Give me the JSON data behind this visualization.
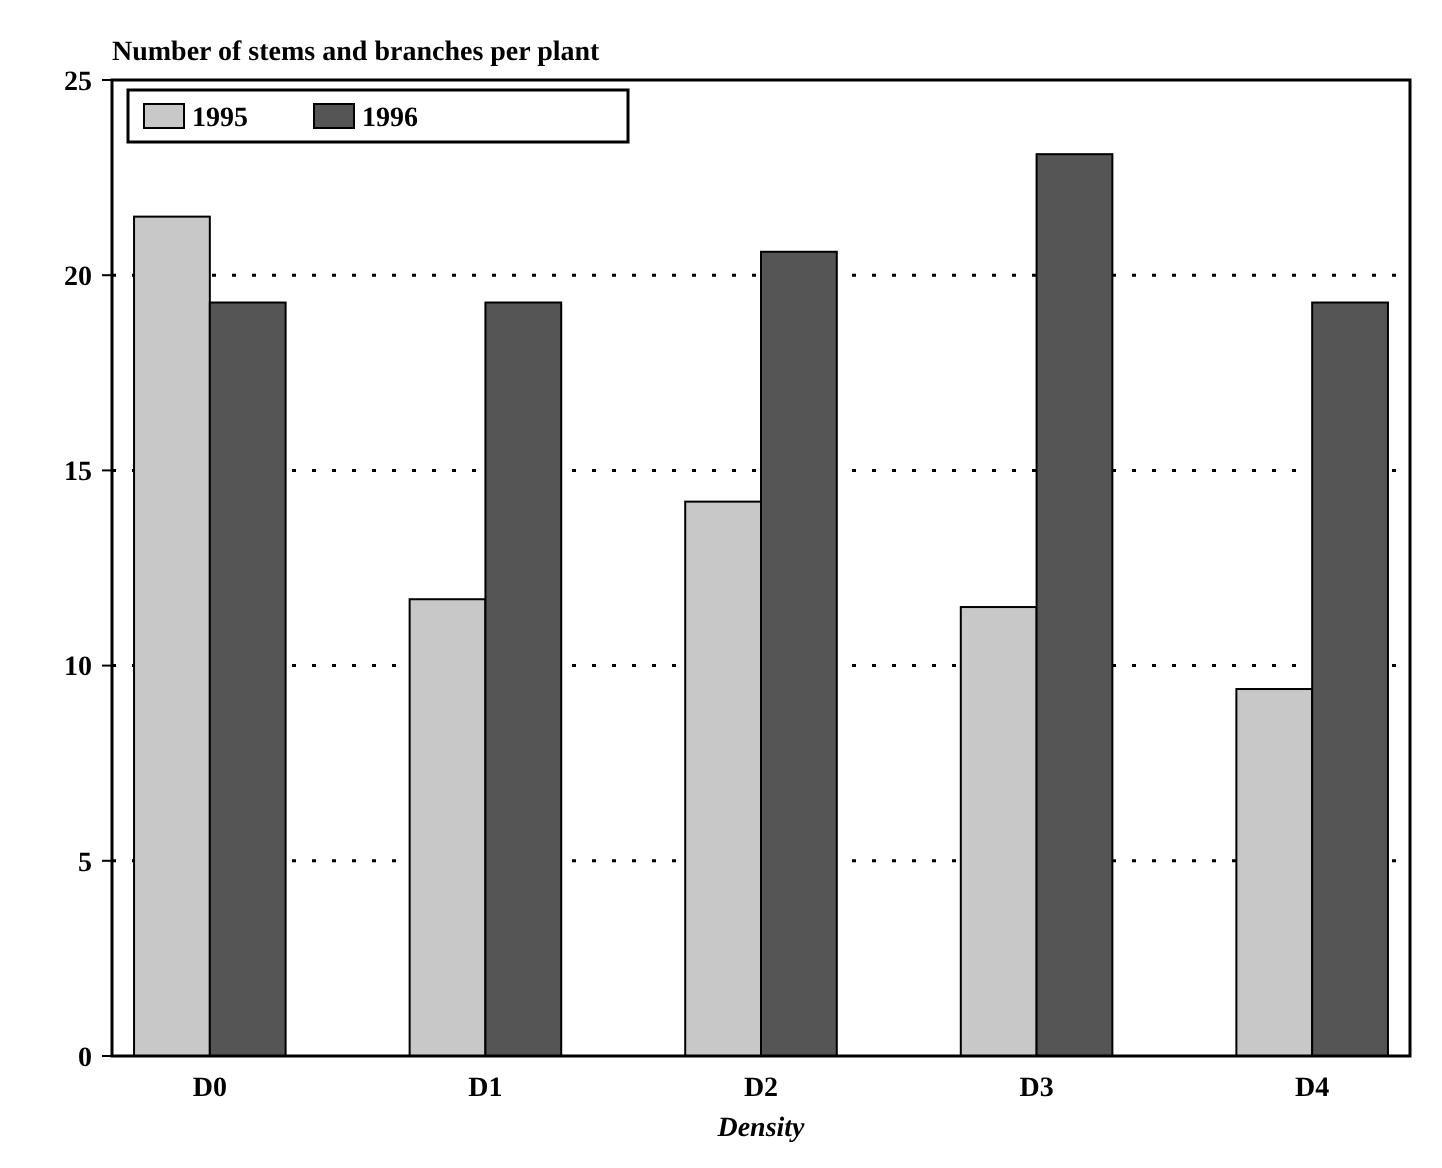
{
  "chart_data": {
    "type": "bar",
    "title": "Number of stems and branches per plant",
    "xlabel": "Density",
    "categories": [
      "D0",
      "D1",
      "D2",
      "D3",
      "D4"
    ],
    "series": [
      {
        "name": "1995",
        "color": "#c8c8c8",
        "values": [
          21.5,
          11.7,
          14.2,
          11.5,
          9.4
        ]
      },
      {
        "name": "1996",
        "color": "#555555",
        "values": [
          19.3,
          19.3,
          20.6,
          23.1,
          19.3
        ]
      }
    ],
    "ylim": [
      0,
      25
    ],
    "yticks": [
      0,
      5,
      10,
      15,
      20,
      25
    ],
    "grid": "y",
    "line_style": "dotted",
    "legend": "top left"
  }
}
